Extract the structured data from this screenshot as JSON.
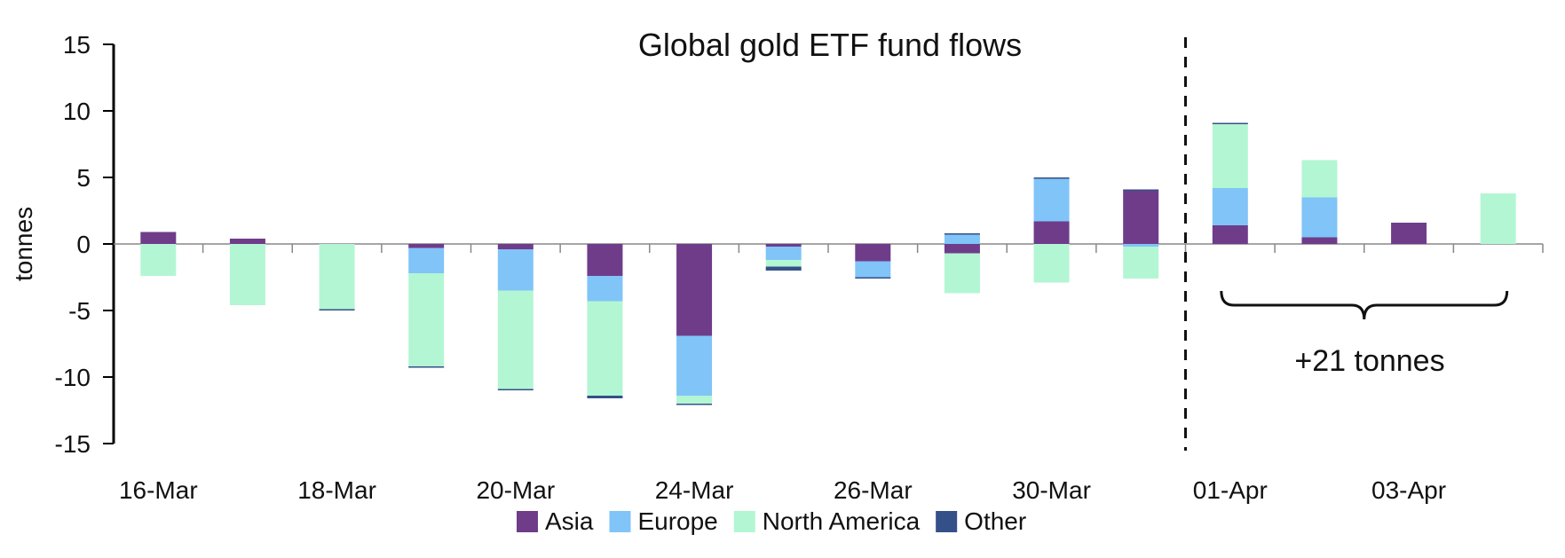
{
  "chart_data": {
    "type": "bar",
    "stacked": true,
    "title": "Global gold ETF fund flows",
    "ylabel": "tonnes",
    "xlabel": "",
    "ylim": [
      -15,
      15
    ],
    "yticks": [
      15,
      10,
      5,
      0,
      -5,
      -10,
      -15
    ],
    "categories": [
      "16-Mar",
      "17-Mar",
      "18-Mar",
      "19-Mar",
      "20-Mar",
      "23-Mar",
      "24-Mar",
      "25-Mar",
      "26-Mar",
      "27-Mar",
      "30-Mar",
      "31-Mar",
      "01-Apr",
      "02-Apr",
      "03-Apr",
      "06-Apr"
    ],
    "xtick_labels": [
      "16-Mar",
      "18-Mar",
      "20-Mar",
      "24-Mar",
      "26-Mar",
      "30-Mar",
      "01-Apr",
      "03-Apr"
    ],
    "series": [
      {
        "name": "Asia",
        "color": "#6f3c8a",
        "values": [
          0.9,
          0.4,
          0,
          -0.3,
          -0.4,
          -2.4,
          -6.9,
          -0.2,
          -1.3,
          -0.7,
          1.7,
          4.0,
          1.4,
          0.5,
          1.6,
          0
        ]
      },
      {
        "name": "Europe",
        "color": "#80c4f8",
        "values": [
          0,
          0,
          0,
          -1.9,
          -3.1,
          -1.9,
          -4.5,
          -1.0,
          -1.2,
          0.7,
          3.2,
          -0.2,
          2.8,
          3.0,
          0,
          0
        ]
      },
      {
        "name": "North America",
        "color": "#b3f6d3",
        "values": [
          -2.4,
          -4.6,
          -4.9,
          -7.0,
          -7.4,
          -7.1,
          -0.6,
          -0.5,
          0,
          -3.0,
          -2.9,
          -2.4,
          4.8,
          2.8,
          0,
          3.8
        ]
      },
      {
        "name": "Other",
        "color": "#355089",
        "values": [
          0,
          0,
          -0.1,
          -0.1,
          -0.1,
          -0.2,
          -0.1,
          -0.3,
          -0.1,
          0.1,
          0.1,
          0.1,
          0.1,
          0,
          0,
          0
        ]
      }
    ],
    "annotation": "+21 tonnes",
    "divider_between": [
      "31-Mar",
      "01-Apr"
    ],
    "brace_span": [
      "01-Apr",
      "06-Apr"
    ],
    "legend_position": "bottom"
  }
}
